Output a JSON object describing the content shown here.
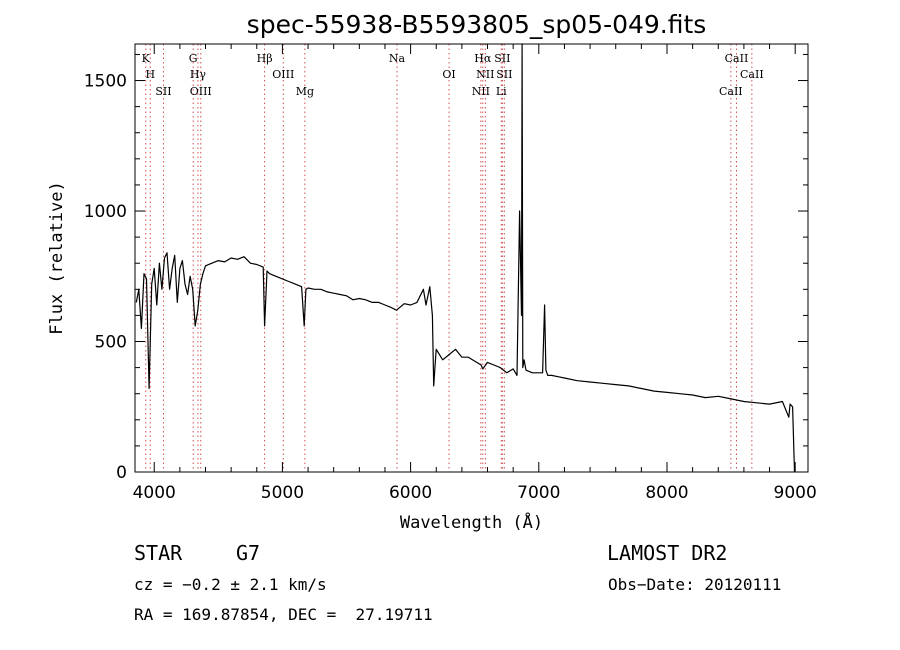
{
  "chart_data": {
    "type": "line",
    "title": "spec-55938-B5593805_sp05-049.fits",
    "xlabel": "Wavelength (Å)",
    "ylabel": "Flux (relative)",
    "xlim": [
      3850,
      9100
    ],
    "ylim": [
      0,
      1640
    ],
    "xticks": [
      4000,
      5000,
      6000,
      7000,
      8000,
      9000
    ],
    "yticks": [
      0,
      500,
      1000,
      1500
    ],
    "grid": false,
    "series": [
      {
        "x": [
          3860,
          3880,
          3900,
          3920,
          3940,
          3960,
          3980,
          4000,
          4020,
          4040,
          4060,
          4080,
          4100,
          4120,
          4140,
          4160,
          4180,
          4200,
          4220,
          4240,
          4260,
          4280,
          4300,
          4320,
          4340,
          4360,
          4380,
          4400,
          4450,
          4500,
          4550,
          4600,
          4650,
          4700,
          4750,
          4800,
          4850,
          4861,
          4880,
          4900,
          4950,
          5000,
          5050,
          5100,
          5150,
          5170,
          5183,
          5200,
          5250,
          5300,
          5350,
          5400,
          5450,
          5500,
          5550,
          5600,
          5650,
          5700,
          5750,
          5800,
          5850,
          5890,
          5950,
          6000,
          6050,
          6100,
          6120,
          6150,
          6170,
          6180,
          6200,
          6250,
          6300,
          6350,
          6400,
          6450,
          6500,
          6550,
          6563,
          6600,
          6650,
          6700,
          6750,
          6800,
          6830,
          6850,
          6865,
          6870,
          6875,
          6885,
          6900,
          6950,
          7000,
          7030,
          7045,
          7055,
          7070,
          7100,
          7150,
          7200,
          7300,
          7400,
          7500,
          7600,
          7700,
          7800,
          7900,
          8000,
          8100,
          8200,
          8300,
          8400,
          8500,
          8600,
          8700,
          8800,
          8900,
          8950,
          8960,
          8980,
          8995
        ],
        "y": [
          650,
          700,
          550,
          760,
          740,
          320,
          720,
          780,
          640,
          800,
          700,
          820,
          840,
          700,
          780,
          830,
          650,
          780,
          810,
          720,
          680,
          750,
          700,
          560,
          620,
          720,
          760,
          790,
          800,
          810,
          805,
          820,
          815,
          825,
          800,
          795,
          785,
          560,
          770,
          760,
          750,
          740,
          730,
          720,
          710,
          560,
          700,
          705,
          700,
          700,
          690,
          685,
          680,
          675,
          660,
          665,
          660,
          650,
          650,
          640,
          630,
          620,
          645,
          640,
          650,
          700,
          640,
          710,
          600,
          330,
          470,
          430,
          450,
          470,
          440,
          440,
          425,
          410,
          395,
          420,
          410,
          400,
          380,
          395,
          370,
          1000,
          600,
          1640,
          400,
          430,
          390,
          380,
          380,
          380,
          640,
          390,
          370,
          370,
          365,
          360,
          350,
          345,
          340,
          335,
          330,
          320,
          310,
          305,
          300,
          295,
          285,
          290,
          280,
          270,
          265,
          260,
          270,
          210,
          260,
          250,
          0
        ]
      }
    ],
    "line_markers": [
      {
        "label": "K",
        "x": 3934
      },
      {
        "label": "H",
        "x": 3969
      },
      {
        "label": "SII",
        "x": 4072
      },
      {
        "label": "G",
        "x": 4304
      },
      {
        "label": "Hγ",
        "x": 4341
      },
      {
        "label": "OIII",
        "x": 4363
      },
      {
        "label": "Hβ",
        "x": 4861
      },
      {
        "label": "OIII",
        "x": 5007
      },
      {
        "label": "Mg",
        "x": 5175
      },
      {
        "label": "Na",
        "x": 5894
      },
      {
        "label": "OI",
        "x": 6300
      },
      {
        "label": "NII",
        "x": 6548
      },
      {
        "label": "Hα",
        "x": 6563
      },
      {
        "label": "NII",
        "x": 6583
      },
      {
        "label": "Li",
        "x": 6707
      },
      {
        "label": "SII",
        "x": 6716
      },
      {
        "label": "SII",
        "x": 6731
      },
      {
        "label": "CaII",
        "x": 8498
      },
      {
        "label": "CaII",
        "x": 8542
      },
      {
        "label": "CaII",
        "x": 8662
      }
    ],
    "colors": {
      "spectrum": "#000000",
      "line_markers": "#d05050",
      "axes": "#000000"
    }
  },
  "info": {
    "object_class": "STAR",
    "subclass": "G7",
    "survey": "LAMOST DR2",
    "redshift": "cz = −0.2 ± 2.1 km/s",
    "obs_date": "Obs−Date: 20120111",
    "coords": "RA = 169.87854, DEC =  27.19711"
  }
}
